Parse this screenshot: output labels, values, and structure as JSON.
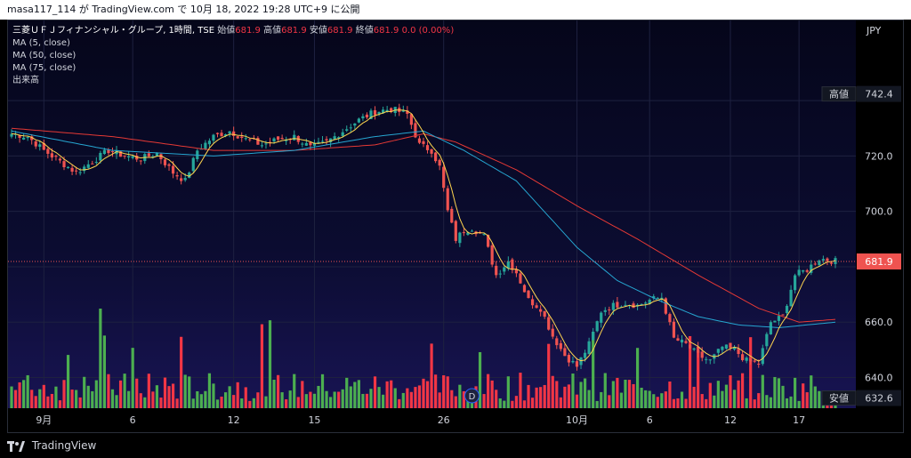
{
  "header": {
    "publish_info": "masa117_114 が TradingView.com で 10月 18, 2022 19:28 UTC+9 に公開"
  },
  "legend": {
    "symbol": "三菱ＵＦＪフィナンシャル・グループ, 1時間, TSE",
    "open_label": "始値",
    "open_value": "681.9",
    "high_label": "高値",
    "high_value": "681.9",
    "low_label": "安値",
    "low_value": "681.9",
    "close_label": "終値",
    "close_value": "681.9",
    "change": "0.0 (0.00%)",
    "ma5": "MA (5, close)",
    "ma50": "MA (50, close)",
    "ma75": "MA (75, close)",
    "volume": "出来高"
  },
  "footer": {
    "brand": "TradingView"
  },
  "colors": {
    "up": "#26a69a",
    "down": "#ef5350",
    "vol_up": "#4caf50",
    "vol_down": "#f23645",
    "ma5": "#ffd54f",
    "ma50": "#26a6d1",
    "ma75": "#e53935"
  },
  "chart_data": {
    "type": "line",
    "title": "三菱ＵＦＪフィナンシャル・グループ, 1時間, TSE",
    "currency": "JPY",
    "y_ticks": [
      640.0,
      660.0,
      680.0,
      700.0,
      720.0,
      740.0
    ],
    "y_tick_labels": [
      "640.0",
      "660.0",
      "",
      "700.0",
      "720.0",
      ""
    ],
    "ylim": [
      627,
      767
    ],
    "x_tick_labels": [
      {
        "label": "9月",
        "bar": 8
      },
      {
        "label": "6",
        "bar": 30
      },
      {
        "label": "12",
        "bar": 55
      },
      {
        "label": "15",
        "bar": 75
      },
      {
        "label": "26",
        "bar": 107
      },
      {
        "label": "10月",
        "bar": 140
      },
      {
        "label": "6",
        "bar": 158
      },
      {
        "label": "12",
        "bar": 178
      },
      {
        "label": "17",
        "bar": 195
      }
    ],
    "high_marker": {
      "label": "高値",
      "value": "742.4"
    },
    "low_marker": {
      "label": "安値",
      "value": "632.6"
    },
    "last_price": {
      "value": "681.9"
    },
    "source_marker": "D",
    "close_anchors": [
      [
        0,
        728
      ],
      [
        4,
        727
      ],
      [
        8,
        722
      ],
      [
        12,
        718
      ],
      [
        16,
        714
      ],
      [
        20,
        718
      ],
      [
        24,
        722
      ],
      [
        28,
        720
      ],
      [
        32,
        719
      ],
      [
        36,
        721
      ],
      [
        40,
        714
      ],
      [
        43,
        711
      ],
      [
        46,
        722
      ],
      [
        50,
        727
      ],
      [
        54,
        729
      ],
      [
        58,
        726
      ],
      [
        62,
        724
      ],
      [
        66,
        726
      ],
      [
        70,
        727
      ],
      [
        74,
        723
      ],
      [
        78,
        725
      ],
      [
        82,
        729
      ],
      [
        86,
        733
      ],
      [
        90,
        736
      ],
      [
        94,
        737
      ],
      [
        98,
        735
      ],
      [
        101,
        724
      ],
      [
        104,
        722
      ],
      [
        106,
        716
      ],
      [
        108,
        700
      ],
      [
        110,
        690
      ],
      [
        112,
        693
      ],
      [
        114,
        694
      ],
      [
        117,
        691
      ],
      [
        120,
        677
      ],
      [
        123,
        682
      ],
      [
        125,
        678
      ],
      [
        128,
        668
      ],
      [
        131,
        665
      ],
      [
        134,
        655
      ],
      [
        137,
        648
      ],
      [
        140,
        644
      ],
      [
        143,
        652
      ],
      [
        146,
        664
      ],
      [
        149,
        666
      ],
      [
        152,
        667
      ],
      [
        155,
        666
      ],
      [
        158,
        668
      ],
      [
        161,
        669
      ],
      [
        164,
        654
      ],
      [
        167,
        652
      ],
      [
        170,
        648
      ],
      [
        173,
        646
      ],
      [
        176,
        651
      ],
      [
        179,
        650
      ],
      [
        182,
        646
      ],
      [
        185,
        645
      ],
      [
        188,
        660
      ],
      [
        191,
        662
      ],
      [
        194,
        677
      ],
      [
        197,
        679
      ],
      [
        200,
        683
      ],
      [
        204,
        682
      ]
    ],
    "ma50_anchors": [
      [
        0,
        729
      ],
      [
        25,
        722
      ],
      [
        50,
        720
      ],
      [
        70,
        722
      ],
      [
        90,
        727
      ],
      [
        102,
        729
      ],
      [
        112,
        722
      ],
      [
        125,
        711
      ],
      [
        140,
        687
      ],
      [
        150,
        675
      ],
      [
        160,
        668
      ],
      [
        170,
        662
      ],
      [
        180,
        659
      ],
      [
        190,
        658
      ],
      [
        204,
        660
      ]
    ],
    "ma75_anchors": [
      [
        0,
        730
      ],
      [
        25,
        727
      ],
      [
        50,
        722
      ],
      [
        70,
        722
      ],
      [
        90,
        724
      ],
      [
        102,
        728
      ],
      [
        110,
        725
      ],
      [
        125,
        715
      ],
      [
        140,
        702
      ],
      [
        155,
        690
      ],
      [
        170,
        677
      ],
      [
        185,
        665
      ],
      [
        195,
        660
      ],
      [
        204,
        661
      ]
    ],
    "volume_bars": 205
  }
}
